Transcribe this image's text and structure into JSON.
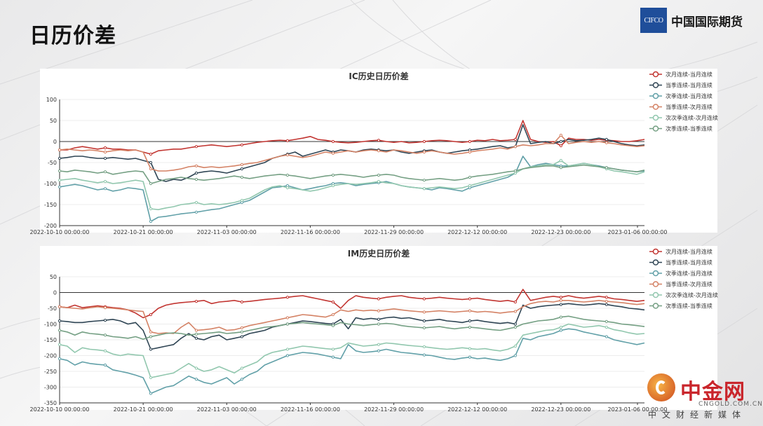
{
  "page": {
    "title": "日历价差"
  },
  "logo": {
    "abbr": "CIFCO",
    "name": "中国国际期货"
  },
  "watermark": {
    "name": "中金网",
    "url": "CNGOLD.COM.CN",
    "slogan": "中文财经新媒体"
  },
  "colors": {
    "series": [
      "#c23531",
      "#2f4554",
      "#61a0a8",
      "#d48265",
      "#91c7ae",
      "#749f83"
    ]
  },
  "chart_data": [
    {
      "type": "line",
      "title": "IC历史日历价差",
      "x_tick_labels": [
        "2022-10-10 00:00:00",
        "2022-10-21 00:00:00",
        "2022-11-03 00:00:00",
        "2022-11-16 00:00:00",
        "2022-11-29 00:00:00",
        "2022-12-12 00:00:00",
        "2022-12-23 00:00:00",
        "2023-01-06 00:00:00"
      ],
      "ylim": [
        -200,
        100
      ],
      "yticks": [
        100,
        50,
        0,
        -50,
        -100,
        -150,
        -200
      ],
      "legend_position": "right",
      "series": [
        {
          "name": "次月连续-当月连续",
          "values": [
            -20,
            -20,
            -15,
            -12,
            -15,
            -18,
            -15,
            -18,
            -18,
            -20,
            -20,
            -25,
            -30,
            -22,
            -20,
            -18,
            -18,
            -15,
            -12,
            -10,
            -8,
            -10,
            -12,
            -10,
            -8,
            -5,
            -2,
            0,
            2,
            3,
            2,
            5,
            8,
            12,
            5,
            3,
            0,
            -2,
            -3,
            -2,
            0,
            2,
            3,
            0,
            -2,
            0,
            -3,
            -2,
            0,
            2,
            3,
            2,
            0,
            -2,
            0,
            3,
            2,
            5,
            2,
            3,
            5,
            50,
            5,
            0,
            -2,
            0,
            -10,
            8,
            5,
            5,
            3,
            5,
            3,
            2,
            0,
            0,
            2,
            5
          ]
        },
        {
          "name": "当季连续-当月连续",
          "values": [
            -40,
            -38,
            -35,
            -35,
            -38,
            -40,
            -40,
            -38,
            -40,
            -42,
            -40,
            -45,
            -50,
            -90,
            -95,
            -90,
            -92,
            -85,
            -75,
            -72,
            -70,
            -72,
            -75,
            -70,
            -65,
            -60,
            -55,
            -50,
            -40,
            -35,
            -30,
            -25,
            -35,
            -30,
            -25,
            -20,
            -25,
            -20,
            -22,
            -25,
            -20,
            -18,
            -20,
            -22,
            -20,
            -25,
            -28,
            -25,
            -22,
            -20,
            -25,
            -28,
            -25,
            -22,
            -20,
            -18,
            -15,
            -12,
            -10,
            -15,
            -12,
            40,
            -5,
            -2,
            0,
            -5,
            0,
            5,
            2,
            3,
            5,
            8,
            5,
            0,
            -5,
            -8,
            -10,
            -8
          ]
        },
        {
          "name": "次季连续-当月连续",
          "values": [
            -108,
            -105,
            -102,
            -105,
            -110,
            -115,
            -112,
            -118,
            -115,
            -110,
            -112,
            -115,
            -190,
            -180,
            -178,
            -175,
            -172,
            -170,
            -168,
            -165,
            -162,
            -160,
            -155,
            -150,
            -145,
            -140,
            -130,
            -120,
            -110,
            -108,
            -105,
            -110,
            -115,
            -112,
            -108,
            -105,
            -100,
            -98,
            -100,
            -105,
            -102,
            -100,
            -98,
            -95,
            -100,
            -105,
            -108,
            -110,
            -112,
            -115,
            -110,
            -112,
            -115,
            -118,
            -110,
            -105,
            -100,
            -95,
            -90,
            -85,
            -75,
            -35,
            -60,
            -55,
            -52,
            -55,
            -58,
            -58,
            -55,
            -52,
            -55,
            -58,
            -62,
            -65,
            -68,
            -70,
            -72,
            -70
          ]
        },
        {
          "name": "当季连续-次月连续",
          "values": [
            -20,
            -18,
            -20,
            -22,
            -20,
            -22,
            -25,
            -22,
            -20,
            -22,
            -20,
            -25,
            -65,
            -70,
            -70,
            -68,
            -65,
            -60,
            -58,
            -62,
            -60,
            -62,
            -60,
            -58,
            -55,
            -52,
            -50,
            -45,
            -40,
            -35,
            -32,
            -35,
            -38,
            -35,
            -30,
            -25,
            -28,
            -25,
            -22,
            -25,
            -22,
            -20,
            -22,
            -25,
            -20,
            -22,
            -25,
            -28,
            -25,
            -22,
            -25,
            -28,
            -30,
            -28,
            -25,
            -22,
            -20,
            -18,
            -15,
            -18,
            -12,
            -8,
            -10,
            -8,
            -5,
            -5,
            15,
            -5,
            -2,
            0,
            -2,
            0,
            -3,
            -5,
            -8,
            -10,
            -12,
            -10
          ]
        },
        {
          "name": "次次季连续-次月连续",
          "values": [
            -92,
            -90,
            -88,
            -92,
            -95,
            -98,
            -95,
            -100,
            -98,
            -95,
            -92,
            -95,
            -160,
            -162,
            -158,
            -155,
            -150,
            -148,
            -145,
            -150,
            -148,
            -150,
            -148,
            -145,
            -140,
            -135,
            -125,
            -115,
            -108,
            -105,
            -110,
            -112,
            -115,
            -118,
            -115,
            -110,
            -105,
            -102,
            -100,
            -102,
            -100,
            -98,
            -95,
            -98,
            -100,
            -105,
            -108,
            -110,
            -112,
            -110,
            -108,
            -110,
            -112,
            -110,
            -105,
            -100,
            -95,
            -90,
            -85,
            -80,
            -75,
            -65,
            -60,
            -58,
            -55,
            -55,
            -45,
            -58,
            -55,
            -52,
            -55,
            -60,
            -65,
            -70,
            -72,
            -75,
            -78,
            -72
          ]
        },
        {
          "name": "次季连续-当季连续",
          "values": [
            -70,
            -72,
            -68,
            -70,
            -72,
            -75,
            -72,
            -78,
            -75,
            -72,
            -70,
            -72,
            -100,
            -95,
            -90,
            -88,
            -85,
            -88,
            -90,
            -92,
            -90,
            -88,
            -85,
            -82,
            -85,
            -88,
            -85,
            -82,
            -80,
            -78,
            -80,
            -82,
            -85,
            -88,
            -85,
            -82,
            -80,
            -78,
            -80,
            -82,
            -85,
            -82,
            -80,
            -78,
            -80,
            -85,
            -88,
            -90,
            -92,
            -90,
            -88,
            -90,
            -92,
            -90,
            -85,
            -82,
            -80,
            -78,
            -75,
            -72,
            -70,
            -65,
            -62,
            -60,
            -58,
            -58,
            -62,
            -60,
            -58,
            -56,
            -58,
            -60,
            -62,
            -65,
            -68,
            -70,
            -72,
            -68
          ]
        }
      ]
    },
    {
      "type": "line",
      "title": "IM历史日历价差",
      "x_tick_labels": [
        "2022-10-10 00:00:00",
        "2022-10-21 00:00:00",
        "2022-11-03 00:00:00",
        "2022-11-16 00:00:00",
        "2022-11-29 00:00:00",
        "2022-12-12 00:00:00",
        "2022-12-23 00:00:00",
        "2023-01-06 00:00:00"
      ],
      "ylim": [
        -350,
        50
      ],
      "yticks": [
        50,
        0,
        -50,
        -100,
        -150,
        -200,
        -250,
        -300,
        -350
      ],
      "legend_position": "right",
      "series": [
        {
          "name": "次月连续-当月连续",
          "values": [
            -45,
            -48,
            -40,
            -48,
            -45,
            -42,
            -45,
            -48,
            -50,
            -55,
            -65,
            -80,
            -70,
            -50,
            -40,
            -35,
            -32,
            -30,
            -28,
            -25,
            -35,
            -30,
            -28,
            -25,
            -30,
            -28,
            -25,
            -22,
            -20,
            -18,
            -15,
            -12,
            -10,
            -15,
            -20,
            -25,
            -30,
            -50,
            -25,
            -10,
            -15,
            -18,
            -20,
            -15,
            -12,
            -10,
            -15,
            -18,
            -20,
            -18,
            -15,
            -18,
            -20,
            -22,
            -20,
            -18,
            -22,
            -25,
            -28,
            -25,
            -30,
            10,
            -25,
            -20,
            -15,
            -12,
            -15,
            -10,
            -15,
            -18,
            -15,
            -12,
            -15,
            -20,
            -22,
            -25,
            -28,
            -25
          ]
        },
        {
          "name": "当季连续-当月连续",
          "values": [
            -90,
            -92,
            -95,
            -95,
            -92,
            -90,
            -88,
            -85,
            -90,
            -100,
            -95,
            -120,
            -180,
            -175,
            -170,
            -165,
            -145,
            -130,
            -145,
            -150,
            -140,
            -135,
            -150,
            -145,
            -140,
            -130,
            -125,
            -120,
            -110,
            -105,
            -100,
            -95,
            -90,
            -92,
            -95,
            -98,
            -100,
            -85,
            -115,
            -80,
            -85,
            -82,
            -85,
            -80,
            -78,
            -82,
            -80,
            -85,
            -90,
            -88,
            -85,
            -90,
            -92,
            -95,
            -90,
            -88,
            -92,
            -95,
            -98,
            -95,
            -100,
            -40,
            -50,
            -45,
            -42,
            -40,
            -38,
            -35,
            -38,
            -40,
            -38,
            -35,
            -38,
            -42,
            -45,
            -50,
            -52,
            -55
          ]
        },
        {
          "name": "次季连续-当月连续",
          "values": [
            -210,
            -215,
            -230,
            -220,
            -225,
            -228,
            -230,
            -245,
            -250,
            -255,
            -262,
            -270,
            -320,
            -310,
            -300,
            -295,
            -280,
            -265,
            -275,
            -285,
            -290,
            -280,
            -270,
            -290,
            -275,
            -260,
            -250,
            -230,
            -220,
            -210,
            -200,
            -195,
            -190,
            -192,
            -195,
            -200,
            -205,
            -210,
            -165,
            -185,
            -190,
            -188,
            -185,
            -180,
            -185,
            -190,
            -192,
            -195,
            -198,
            -200,
            -205,
            -210,
            -212,
            -208,
            -205,
            -210,
            -208,
            -212,
            -215,
            -210,
            -200,
            -145,
            -150,
            -140,
            -135,
            -130,
            -120,
            -115,
            -118,
            -125,
            -130,
            -135,
            -140,
            -150,
            -155,
            -160,
            -165,
            -160
          ]
        },
        {
          "name": "当季连续-次月连续",
          "values": [
            -45,
            -48,
            -50,
            -52,
            -48,
            -45,
            -48,
            -50,
            -52,
            -55,
            -58,
            -60,
            -125,
            -130,
            -128,
            -130,
            -110,
            -95,
            -120,
            -118,
            -115,
            -110,
            -120,
            -118,
            -112,
            -105,
            -100,
            -95,
            -90,
            -85,
            -80,
            -75,
            -70,
            -72,
            -75,
            -78,
            -70,
            -55,
            -60,
            -55,
            -58,
            -56,
            -58,
            -55,
            -52,
            -55,
            -58,
            -60,
            -62,
            -60,
            -58,
            -60,
            -62,
            -60,
            -58,
            -62,
            -60,
            -62,
            -65,
            -62,
            -60,
            -45,
            -35,
            -30,
            -28,
            -30,
            -25,
            -25,
            -28,
            -30,
            -28,
            -25,
            -28,
            -30,
            -32,
            -35,
            -38,
            -35
          ]
        },
        {
          "name": "次次季连续-次月连续",
          "values": [
            -165,
            -170,
            -190,
            -175,
            -180,
            -182,
            -185,
            -195,
            -200,
            -195,
            -198,
            -200,
            -270,
            -265,
            -260,
            -255,
            -240,
            -225,
            -240,
            -250,
            -245,
            -235,
            -245,
            -255,
            -240,
            -230,
            -220,
            -200,
            -190,
            -185,
            -180,
            -175,
            -170,
            -172,
            -175,
            -178,
            -180,
            -175,
            -160,
            -165,
            -170,
            -168,
            -165,
            -160,
            -162,
            -165,
            -168,
            -170,
            -172,
            -175,
            -178,
            -180,
            -178,
            -175,
            -178,
            -180,
            -178,
            -182,
            -185,
            -180,
            -170,
            -135,
            -130,
            -125,
            -120,
            -118,
            -110,
            -100,
            -105,
            -110,
            -108,
            -105,
            -110,
            -118,
            -122,
            -128,
            -132,
            -130
          ]
        },
        {
          "name": "次季连续-当季连续",
          "values": [
            -120,
            -125,
            -135,
            -125,
            -130,
            -132,
            -135,
            -140,
            -142,
            -145,
            -140,
            -148,
            -140,
            -135,
            -130,
            -128,
            -130,
            -135,
            -132,
            -130,
            -128,
            -125,
            -130,
            -128,
            -125,
            -120,
            -115,
            -110,
            -108,
            -105,
            -100,
            -98,
            -95,
            -98,
            -100,
            -102,
            -105,
            -95,
            -100,
            -102,
            -105,
            -102,
            -100,
            -98,
            -100,
            -105,
            -108,
            -110,
            -112,
            -110,
            -108,
            -112,
            -115,
            -112,
            -110,
            -112,
            -115,
            -118,
            -120,
            -115,
            -110,
            -100,
            -95,
            -90,
            -88,
            -85,
            -78,
            -75,
            -80,
            -85,
            -88,
            -90,
            -92,
            -95,
            -100,
            -102,
            -105,
            -108
          ]
        }
      ]
    }
  ]
}
